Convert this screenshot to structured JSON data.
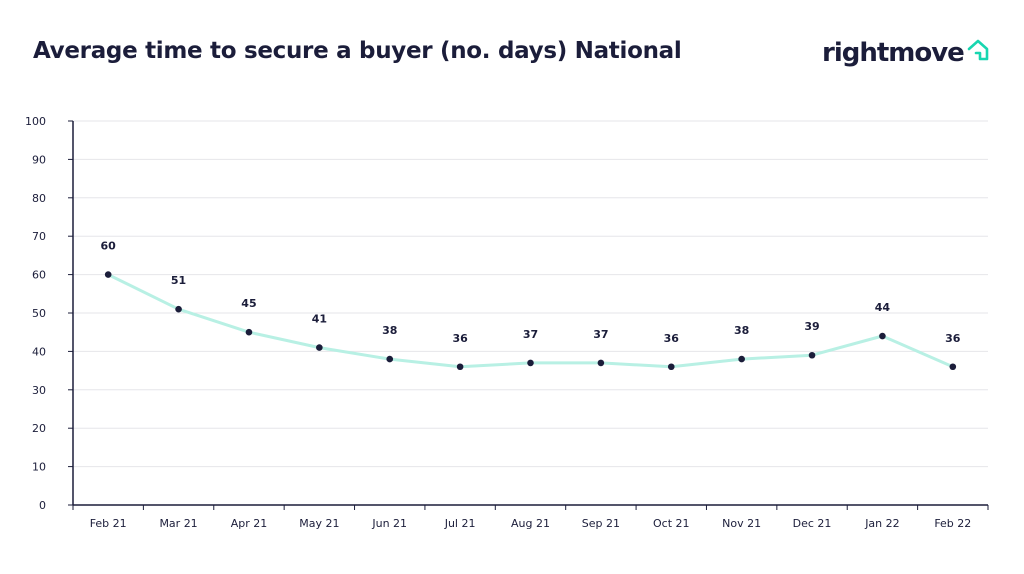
{
  "title": "Average time to secure a buyer (no. days) National",
  "brand": {
    "name": "rightmove",
    "icon": "house-icon",
    "text_color": "#1b1d3a",
    "accent_color": "#18d6b0"
  },
  "colors": {
    "line": "#b8f0e4",
    "point": "#1b1d3a",
    "grid": "#e6e6ea",
    "axis": "#1b1d3a"
  },
  "chart_data": {
    "type": "line",
    "title": "Average time to secure a buyer (no. days) National",
    "xlabel": "",
    "ylabel": "",
    "categories": [
      "Feb 21",
      "Mar 21",
      "Apr 21",
      "May 21",
      "Jun 21",
      "Jul 21",
      "Aug 21",
      "Sep 21",
      "Oct 21",
      "Nov 21",
      "Dec 21",
      "Jan 22",
      "Feb 22"
    ],
    "series": [
      {
        "values": [
          60,
          51,
          45,
          41,
          38,
          36,
          37,
          37,
          36,
          38,
          39,
          44,
          36
        ]
      }
    ],
    "ylim": [
      0,
      100
    ],
    "yticks": [
      0,
      10,
      20,
      30,
      40,
      50,
      60,
      70,
      80,
      90,
      100
    ],
    "grid": true,
    "data_labels": true,
    "legend": "none"
  }
}
